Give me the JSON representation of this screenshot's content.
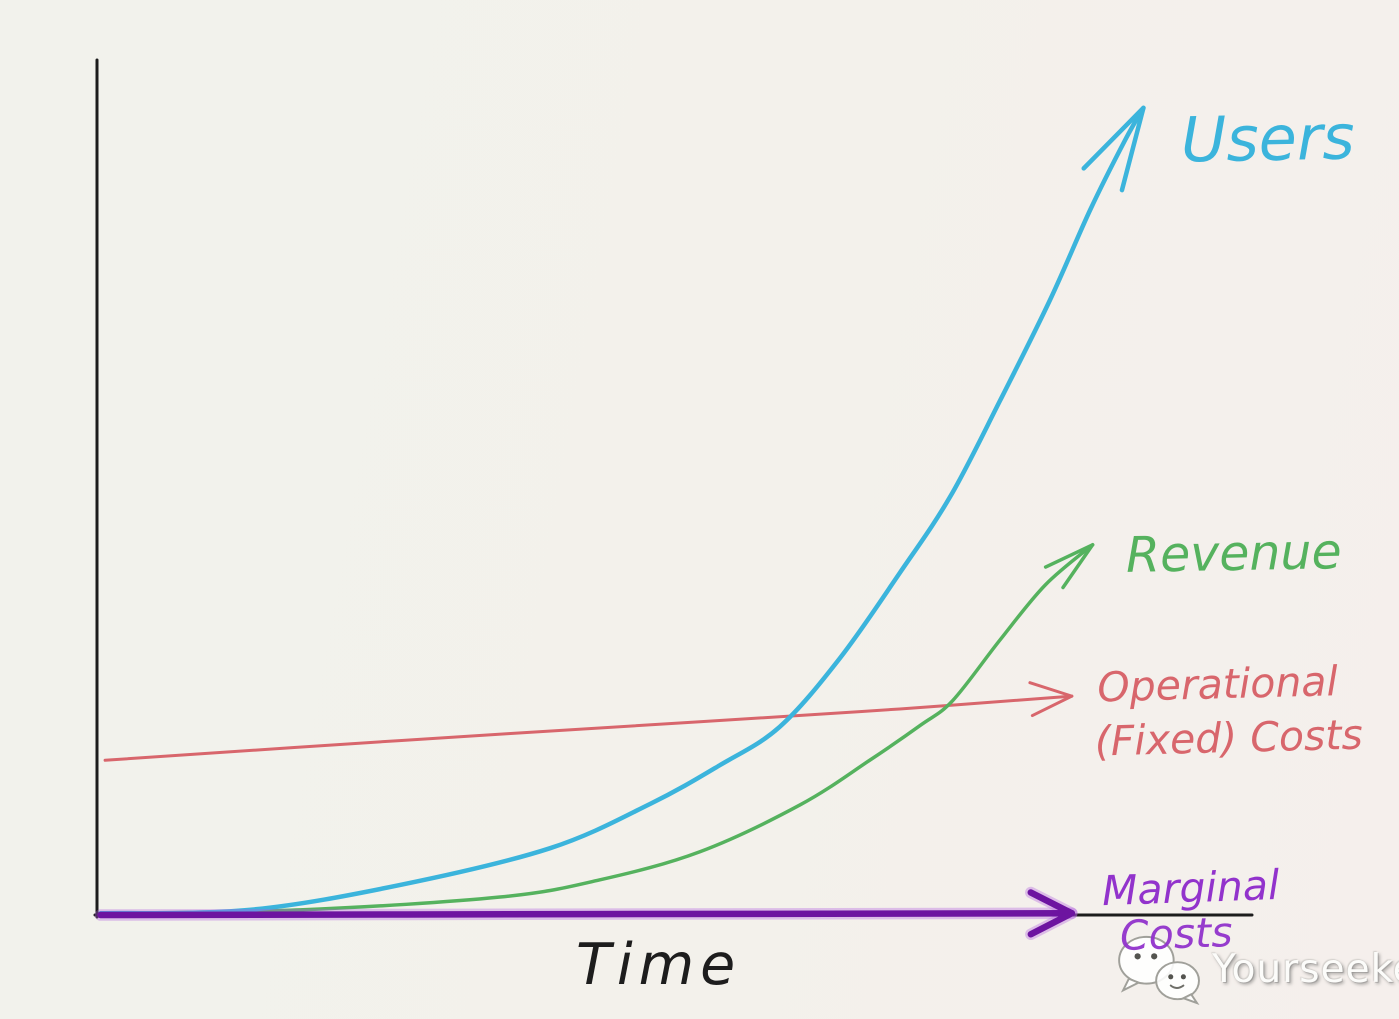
{
  "page": {
    "background_color": "#f2f2ec",
    "axis_color": "#1c1c1c"
  },
  "chart_data": {
    "type": "line",
    "style": "hand-drawn whiteboard sketch, four annotated arrow curves",
    "title": "",
    "xlabel": "Time",
    "ylabel": "",
    "x_axis": {
      "range_percent": [
        0,
        100
      ],
      "tick_labels": []
    },
    "y_axis": {
      "range_percent": [
        0,
        100
      ],
      "tick_labels": []
    },
    "grid": false,
    "legend_position": "inline-right-annotations",
    "series": [
      {
        "name": "Users",
        "label": "Users",
        "color": "#3bb4dc",
        "shape": "exponential growth, steepest and highest curve",
        "points": [
          [
            0.3,
            0.2
          ],
          [
            13.2,
            0.6
          ],
          [
            26.2,
            3.5
          ],
          [
            39.2,
            7.8
          ],
          [
            47.9,
            13
          ],
          [
            53.9,
            17.5
          ],
          [
            59.1,
            22
          ],
          [
            64.3,
            30
          ],
          [
            69.5,
            40
          ],
          [
            73.9,
            49
          ],
          [
            78.2,
            60.2
          ],
          [
            82.5,
            71.9
          ],
          [
            86,
            82.5
          ],
          [
            89,
            90.6
          ],
          [
            90.6,
            94.4
          ]
        ]
      },
      {
        "name": "Revenue",
        "label": "Revenue",
        "color": "#55b25e",
        "shape": "exponential growth lagging behind users",
        "points": [
          [
            0.3,
            0.2
          ],
          [
            17.6,
            0.6
          ],
          [
            34.9,
            2.1
          ],
          [
            43.5,
            4.1
          ],
          [
            52.2,
            7.4
          ],
          [
            60.9,
            12.9
          ],
          [
            66.9,
            18.1
          ],
          [
            71.3,
            22.2
          ],
          [
            74.1,
            25.1
          ],
          [
            78.2,
            32.2
          ],
          [
            82.1,
            38.6
          ],
          [
            86.2,
            43.3
          ]
        ]
      },
      {
        "name": "Operational (Fixed) Costs",
        "label_lines": [
          "Operational",
          "(Fixed) Costs"
        ],
        "color": "#d8666c",
        "shape": "nearly flat, slowly rising straight line",
        "points": [
          [
            0.7,
            18.1
          ],
          [
            26.2,
            20.4
          ],
          [
            52.2,
            22.6
          ],
          [
            69.5,
            24.1
          ],
          [
            84.4,
            25.6
          ]
        ]
      },
      {
        "name": "Marginal Costs",
        "label_lines": [
          "Marginal",
          "Costs"
        ],
        "color": "#6d14a0",
        "label_color": "#9233cc",
        "shape": "flat at zero, runs along the x-axis",
        "points": [
          [
            0.3,
            0
          ],
          [
            42,
            0.1
          ],
          [
            84.4,
            0.2
          ]
        ]
      }
    ]
  },
  "watermark": {
    "icon": "wechat-chat-icon",
    "text": "Yourseeker"
  }
}
